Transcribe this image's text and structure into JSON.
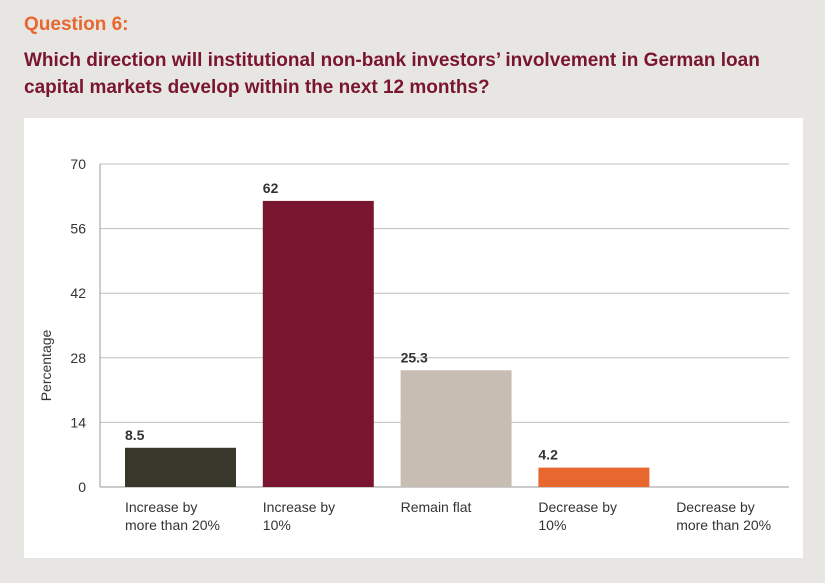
{
  "question": {
    "number": "Question 6:",
    "text": "Which direction will institutional non-bank investors’ involvement in German loan capital markets develop within the next 12 months?"
  },
  "chart_data": {
    "type": "bar",
    "categories": [
      [
        "Increase by",
        "more than 20%"
      ],
      [
        "Increase by",
        "10%"
      ],
      [
        "Remain flat"
      ],
      [
        "Decrease by",
        "10%"
      ],
      [
        "Decrease by",
        "more than 20%"
      ]
    ],
    "values": [
      8.5,
      62,
      25.3,
      4.2,
      null
    ],
    "data_labels": [
      "8.5",
      "62",
      "25.3",
      "4.2",
      ""
    ],
    "colors": [
      "#38372c",
      "#7a1530",
      "#c8bdb3",
      "#e8672e",
      "#cccccc"
    ],
    "ylabel": "Percentage",
    "yticks": [
      0,
      14,
      28,
      42,
      56,
      70
    ],
    "ylim": [
      0,
      70
    ],
    "grid": true,
    "label_color": "#333333",
    "grid_color": "#bfbfbf"
  }
}
